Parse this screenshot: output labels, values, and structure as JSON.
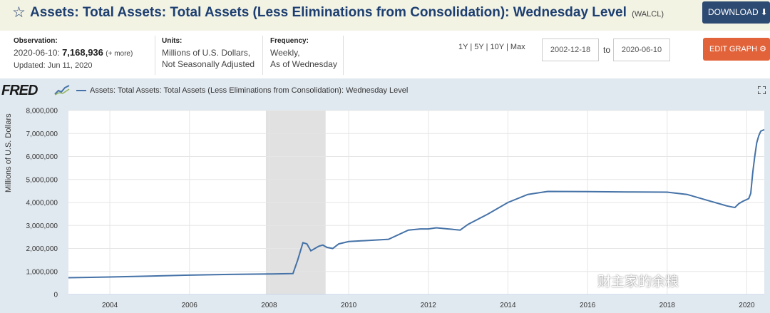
{
  "header": {
    "title": "Assets: Total Assets: Total Assets (Less Eliminations from Consolidation): Wednesday Level",
    "series_id": "(WALCL)",
    "download_label": "DOWNLOAD"
  },
  "meta": {
    "observation_label": "Observation:",
    "observation_date": "2020-06-10:",
    "observation_value": "7,168,936",
    "observation_more": "(+ more)",
    "updated": "Updated: Jun 11, 2020",
    "units_label": "Units:",
    "units_line1": "Millions of U.S. Dollars,",
    "units_line2": "Not Seasonally Adjusted",
    "frequency_label": "Frequency:",
    "frequency_line1": "Weekly,",
    "frequency_line2": "As of Wednesday"
  },
  "controls": {
    "range_1y": "1Y",
    "range_5y": "5Y",
    "range_10y": "10Y",
    "range_max": "Max",
    "sep": "|",
    "start_date": "2002-12-18",
    "to_label": "to",
    "end_date": "2020-06-10",
    "edit_label": "EDIT GRAPH"
  },
  "brand": {
    "logo": "FRED",
    "line_color": "#4572a7",
    "recession_color": "#e1e1e1"
  },
  "watermark": "财主家的余粮",
  "chart_data": {
    "type": "line",
    "legend_position": "top-left",
    "grid": true,
    "ylabel": "Millions of U.S. Dollars",
    "xlim": [
      2002.96,
      2020.44
    ],
    "ylim": [
      0,
      8000000
    ],
    "x_ticks": [
      2004,
      2006,
      2008,
      2010,
      2012,
      2014,
      2016,
      2018,
      2020
    ],
    "y_ticks": [
      0,
      1000000,
      2000000,
      3000000,
      4000000,
      5000000,
      6000000,
      7000000,
      8000000
    ],
    "y_tick_labels": [
      "0",
      "1,000,000",
      "2,000,000",
      "3,000,000",
      "4,000,000",
      "5,000,000",
      "6,000,000",
      "7,000,000",
      "8,000,000"
    ],
    "recessions": [
      [
        2007.92,
        2009.42
      ]
    ],
    "series": [
      {
        "name": "Assets: Total Assets: Total Assets (Less Eliminations from Consolidation): Wednesday Level",
        "x": [
          2002.96,
          2004.0,
          2005.0,
          2006.0,
          2007.0,
          2008.0,
          2008.6,
          2008.72,
          2008.85,
          2008.95,
          2009.05,
          2009.15,
          2009.25,
          2009.35,
          2009.45,
          2009.6,
          2009.75,
          2010.0,
          2010.5,
          2011.0,
          2011.5,
          2011.8,
          2012.0,
          2012.2,
          2012.5,
          2012.8,
          2013.0,
          2013.5,
          2014.0,
          2014.5,
          2015.0,
          2016.0,
          2017.0,
          2018.0,
          2018.5,
          2019.0,
          2019.5,
          2019.7,
          2019.8,
          2019.9,
          2020.05,
          2020.1,
          2020.15,
          2020.2,
          2020.25,
          2020.3,
          2020.35,
          2020.44
        ],
        "y": [
          730000,
          760000,
          800000,
          840000,
          870000,
          890000,
          910000,
          1500000,
          2250000,
          2200000,
          1900000,
          2000000,
          2100000,
          2150000,
          2050000,
          2000000,
          2200000,
          2300000,
          2350000,
          2400000,
          2800000,
          2850000,
          2850000,
          2900000,
          2850000,
          2800000,
          3050000,
          3500000,
          4000000,
          4350000,
          4480000,
          4470000,
          4460000,
          4450000,
          4350000,
          4100000,
          3850000,
          3780000,
          3950000,
          4050000,
          4170000,
          4400000,
          5300000,
          6000000,
          6600000,
          6900000,
          7100000,
          7168936
        ]
      }
    ]
  }
}
